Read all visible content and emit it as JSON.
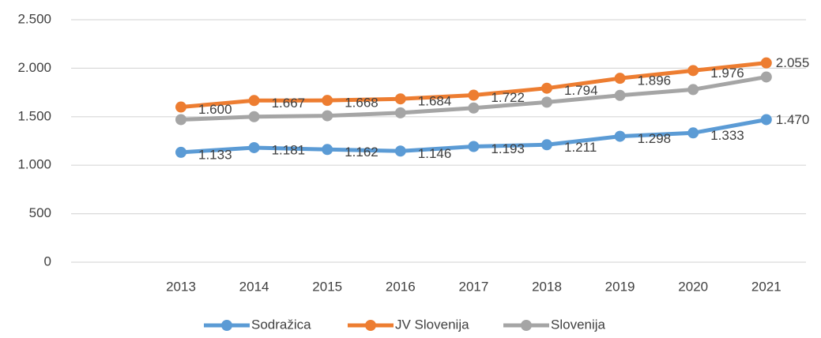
{
  "chart_data": {
    "type": "line",
    "categories": [
      "2013",
      "2014",
      "2015",
      "2016",
      "2017",
      "2018",
      "2019",
      "2020",
      "2021"
    ],
    "series": [
      {
        "name": "Sodražica",
        "color": "#5b9bd5",
        "values": [
          1133,
          1181,
          1162,
          1146,
          1193,
          1211,
          1298,
          1333,
          1470
        ],
        "value_labels": [
          "1.133",
          "1.181",
          "1.162",
          "1.146",
          "1.193",
          "1.211",
          "1.298",
          "1.333",
          "1.470"
        ]
      },
      {
        "name": "JV Slovenija",
        "color": "#ed7d31",
        "values": [
          1600,
          1667,
          1668,
          1684,
          1722,
          1794,
          1896,
          1976,
          2055
        ],
        "value_labels": [
          "1.600",
          "1.667",
          "1.668",
          "1.684",
          "1.722",
          "1.794",
          "1.896",
          "1.976",
          "2.055"
        ]
      },
      {
        "name": "Slovenija",
        "color": "#a5a5a5",
        "values": [
          1470,
          1500,
          1510,
          1540,
          1590,
          1650,
          1720,
          1780,
          1910
        ]
      }
    ],
    "ylim": [
      0,
      2500
    ],
    "yticks": [
      0,
      500,
      {
        "value": 1000,
        "label": "1.000"
      },
      {
        "value": 1500,
        "label": "1.500"
      },
      {
        "value": 2000,
        "label": "2.000"
      },
      {
        "value": 2500,
        "label": "2.500"
      }
    ],
    "grid": true
  }
}
